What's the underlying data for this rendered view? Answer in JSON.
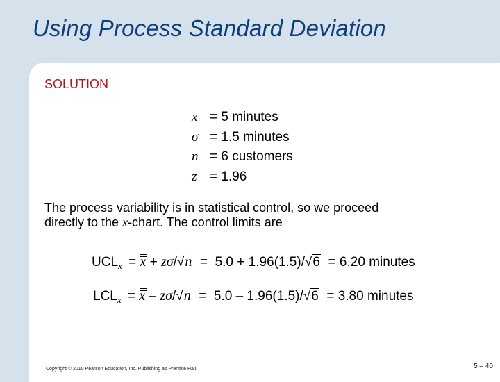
{
  "title": "Using Process Standard Deviation",
  "solution_label": "SOLUTION",
  "givens": [
    {
      "symbol": "x",
      "value": "= 5 minutes"
    },
    {
      "symbol": "σ",
      "value": "= 1.5 minutes"
    },
    {
      "symbol": "n",
      "value": "= 6 customers"
    },
    {
      "symbol": "z",
      "value": "= 1.96"
    }
  ],
  "paragraph": {
    "line1": "The process variability is in statistical control, so we proceed",
    "line2_before": "directly to the ",
    "line2_x": "x",
    "line2_after": "-chart. The control limits are"
  },
  "ucl": {
    "label": "UCL",
    "sub": "x",
    "eq": " = ",
    "xbar": "x",
    "op": " + ",
    "z": "zσ",
    "slash": "/",
    "root": "√",
    "n": "n",
    "mid": "  =  5.0 + 1.96(1.5)/",
    "num": "6",
    "result": "  = 6.20 minutes"
  },
  "lcl": {
    "label": "LCL",
    "sub": "x",
    "eq": " = ",
    "xbar": "x",
    "op": " – ",
    "z": "zσ",
    "slash": "/",
    "root": "√",
    "n": "n",
    "mid": "  =  5.0 – 1.96(1.5)/",
    "num": "6",
    "result": "  = 3.80 minutes"
  },
  "copyright": "Copyright © 2010 Pearson Education, Inc. Publishing as Prentice Hall.",
  "slide_number": "5 – 40"
}
